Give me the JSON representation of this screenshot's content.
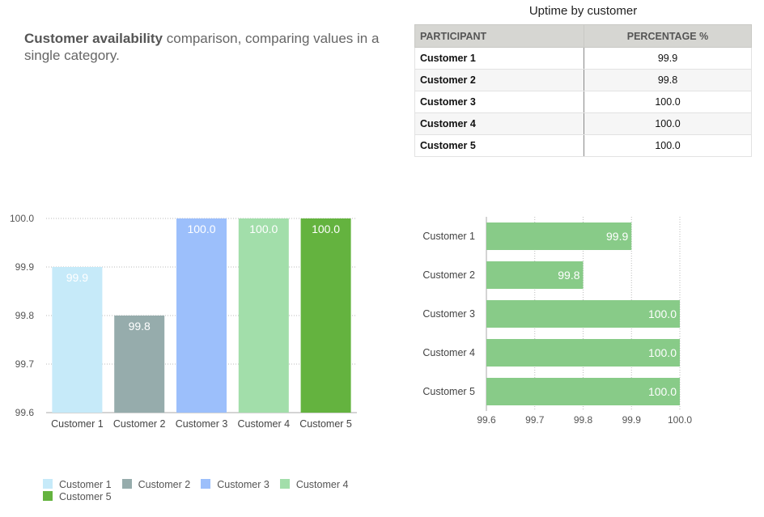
{
  "intro": {
    "bold": "Customer availability",
    "rest": " comparison, comparing values in a single category."
  },
  "table": {
    "title": "Uptime by customer",
    "headers": [
      "PARTICIPANT",
      "PERCENTAGE %"
    ],
    "rows": [
      [
        "Customer 1",
        "99.9"
      ],
      [
        "Customer 2",
        "99.8"
      ],
      [
        "Customer 3",
        "100.0"
      ],
      [
        "Customer 4",
        "100.0"
      ],
      [
        "Customer 5",
        "100.0"
      ]
    ]
  },
  "colors": {
    "customer1": "#c6eaf9",
    "customer2": "#96acac",
    "customer3": "#9cbffb",
    "customer4": "#a2deaa",
    "customer5": "#64b33f",
    "hbar": "#88cb88"
  },
  "chart_data": [
    {
      "type": "bar",
      "categories": [
        "Customer 1",
        "Customer 2",
        "Customer 3",
        "Customer 4",
        "Customer 5"
      ],
      "values": [
        99.9,
        99.8,
        100.0,
        100.0,
        100.0
      ],
      "value_labels": [
        "99.9",
        "99.8",
        "100.0",
        "100.0",
        "100.0"
      ],
      "ylim": [
        99.6,
        100.0
      ],
      "yticks": [
        "99.6",
        "99.7",
        "99.8",
        "99.9",
        "100.0"
      ],
      "grid": true,
      "legend": [
        "Customer 1",
        "Customer 2",
        "Customer 3",
        "Customer 4",
        "Customer 5"
      ],
      "legend_position": "bottom-left"
    },
    {
      "type": "bar",
      "orientation": "horizontal",
      "categories": [
        "Customer 1",
        "Customer 2",
        "Customer 3",
        "Customer 4",
        "Customer 5"
      ],
      "values": [
        99.9,
        99.8,
        100.0,
        100.0,
        100.0
      ],
      "value_labels": [
        "99.9",
        "99.8",
        "100.0",
        "100.0",
        "100.0"
      ],
      "xlim": [
        99.6,
        100.0
      ],
      "xticks": [
        "99.6",
        "99.7",
        "99.8",
        "99.9",
        "100.0"
      ],
      "grid": true
    }
  ]
}
